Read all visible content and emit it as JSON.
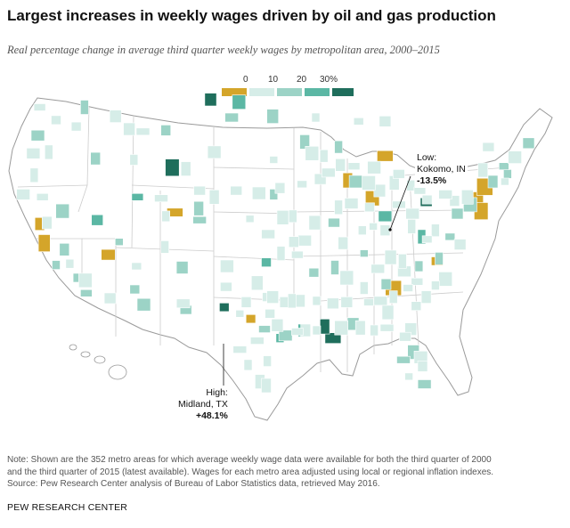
{
  "header": {
    "title": "Largest increases in weekly wages driven by oil and gas production",
    "subtitle": "Real percentage change in average third quarter weekly wages by metropolitan area, 2000–2015"
  },
  "legend": {
    "ticks": [
      "0",
      "10",
      "20",
      "30%"
    ],
    "bins": [
      {
        "label": "<0",
        "color": "#d4a52a"
      },
      {
        "label": "0-10",
        "color": "#d6ede8"
      },
      {
        "label": "10-20",
        "color": "#9cd3c6"
      },
      {
        "label": "20-30",
        "color": "#5bb7a4"
      },
      {
        "label": "30+",
        "color": "#1f6e5c"
      }
    ]
  },
  "colors": {
    "negative": "#d4a52a",
    "low": "#d6ede8",
    "mid": "#9cd3c6",
    "high": "#5bb7a4",
    "highest": "#1f6e5c",
    "borders": "#bbbbbb"
  },
  "callouts": {
    "low": {
      "line1": "Low:",
      "line2": "Kokomo, IN",
      "line3": "-13.5%"
    },
    "high": {
      "line1": "High:",
      "line2": "Midland, TX",
      "line3": "+48.1%"
    }
  },
  "note": {
    "line1": "Note: Shown are the 352 metro areas for which average weekly wage data were available for both the third quarter of 2000",
    "line2": "and the third quarter of 2015 (latest available). Wages for each metro area adjusted using local or regional inflation indexes.",
    "line3": "Source: Pew Research Center analysis of Bureau of Labor Statistics data, retrieved May 2016."
  },
  "brand": "PEW RESEARCH CENTER",
  "map_data": {
    "metro_areas_shown": 352,
    "highlighted": [
      {
        "name": "Kokomo, IN",
        "change_pct": -13.5,
        "bin": "<0"
      },
      {
        "name": "Midland, TX",
        "change_pct": 48.1,
        "bin": "30+"
      }
    ],
    "metros": [
      {
        "bin": "30+",
        "lon": -102.1,
        "lat": 32.0
      },
      {
        "bin": "30+",
        "lon": -103.6,
        "lat": 48.2
      },
      {
        "bin": "30+",
        "lon": -107.8,
        "lat": 42.9
      },
      {
        "bin": "30+",
        "lon": -90.2,
        "lat": 29.6
      },
      {
        "bin": "30+",
        "lon": -91.1,
        "lat": 30.5
      },
      {
        "bin": "30+",
        "lon": -80.0,
        "lat": 40.2
      },
      {
        "bin": "20-30",
        "lon": -116.0,
        "lat": 38.8
      },
      {
        "bin": "20-30",
        "lon": -100.5,
        "lat": 48.0
      },
      {
        "bin": "20-30",
        "lon": -96.0,
        "lat": 29.6
      },
      {
        "bin": "20-30",
        "lon": -93.5,
        "lat": 30.2
      },
      {
        "bin": "20-30",
        "lon": -111.6,
        "lat": 40.6
      },
      {
        "bin": "20-30",
        "lon": -84.5,
        "lat": 39.1
      },
      {
        "bin": "20-30",
        "lon": -80.5,
        "lat": 37.5
      },
      {
        "bin": "20-30",
        "lon": -97.5,
        "lat": 35.5
      },
      {
        "bin": "<0",
        "lon": -85.9,
        "lat": 40.5
      },
      {
        "bin": "<0",
        "lon": -107.5,
        "lat": 39.4
      },
      {
        "bin": "<0",
        "lon": -122.3,
        "lat": 38.5
      },
      {
        "bin": "<0",
        "lon": -121.8,
        "lat": 37.0
      },
      {
        "bin": "<0",
        "lon": -114.8,
        "lat": 36.1
      },
      {
        "bin": "<0",
        "lon": -83.6,
        "lat": 33.5
      },
      {
        "bin": "<0",
        "lon": -99.2,
        "lat": 31.1
      },
      {
        "bin": "<0",
        "lon": -74.4,
        "lat": 40.5
      },
      {
        "bin": "<0",
        "lon": -74.0,
        "lat": 39.5
      },
      {
        "bin": "<0",
        "lon": -84.5,
        "lat": 43.8
      },
      {
        "bin": "<0",
        "lon": -88.6,
        "lat": 41.9
      },
      {
        "bin": "<0",
        "lon": -78.8,
        "lat": 35.6
      },
      {
        "bin": "<0",
        "lon": -77.0,
        "lat": 43.0
      },
      {
        "bin": "<0",
        "lon": -73.6,
        "lat": 41.4
      },
      {
        "bin": "10-20",
        "lon": -118.2,
        "lat": 34.3
      },
      {
        "bin": "10-20",
        "lon": -119.6,
        "lat": 36.5
      },
      {
        "bin": "10-20",
        "lon": -117.2,
        "lat": 33.1
      },
      {
        "bin": "10-20",
        "lon": -122.5,
        "lat": 45.4
      },
      {
        "bin": "10-20",
        "lon": -117.4,
        "lat": 47.6
      },
      {
        "bin": "10-20",
        "lon": -111.9,
        "lat": 33.4
      },
      {
        "bin": "10-20",
        "lon": -106.7,
        "lat": 35.1
      },
      {
        "bin": "10-20",
        "lon": -104.8,
        "lat": 38.8
      },
      {
        "bin": "10-20",
        "lon": -96.7,
        "lat": 40.8
      },
      {
        "bin": "10-20",
        "lon": -93.3,
        "lat": 44.9
      },
      {
        "bin": "10-20",
        "lon": -90.1,
        "lat": 38.6
      },
      {
        "bin": "10-20",
        "lon": -87.7,
        "lat": 41.8
      },
      {
        "bin": "10-20",
        "lon": -86.8,
        "lat": 36.2
      },
      {
        "bin": "10-20",
        "lon": -84.4,
        "lat": 33.8
      },
      {
        "bin": "10-20",
        "lon": -81.4,
        "lat": 28.5
      },
      {
        "bin": "10-20",
        "lon": -80.2,
        "lat": 26.0
      },
      {
        "bin": "10-20",
        "lon": -78.6,
        "lat": 35.8
      },
      {
        "bin": "10-20",
        "lon": -77.4,
        "lat": 37.5
      },
      {
        "bin": "10-20",
        "lon": -76.6,
        "lat": 39.3
      },
      {
        "bin": "10-20",
        "lon": -75.2,
        "lat": 40.0
      },
      {
        "bin": "10-20",
        "lon": -71.1,
        "lat": 42.4
      },
      {
        "bin": "10-20",
        "lon": -72.7,
        "lat": 41.8
      },
      {
        "bin": "10-20",
        "lon": -97.7,
        "lat": 30.3
      },
      {
        "bin": "10-20",
        "lon": -95.4,
        "lat": 29.8
      },
      {
        "bin": "10-20",
        "lon": -90.0,
        "lat": 35.1
      },
      {
        "bin": "10-20",
        "lon": -92.3,
        "lat": 34.7
      },
      {
        "bin": "10-20",
        "lon": -88.0,
        "lat": 30.7
      },
      {
        "bin": "10-20",
        "lon": -82.5,
        "lat": 27.9
      },
      {
        "bin": "10-20",
        "lon": -80.8,
        "lat": 35.2
      },
      {
        "bin": "10-20",
        "lon": -104.9,
        "lat": 39.7
      },
      {
        "bin": "10-20",
        "lon": -106.3,
        "lat": 31.8
      },
      {
        "bin": "10-20",
        "lon": -110.9,
        "lat": 32.2
      },
      {
        "bin": "10-20",
        "lon": -113.6,
        "lat": 37.1
      },
      {
        "bin": "10-20",
        "lon": -108.5,
        "lat": 45.8
      },
      {
        "bin": "10-20",
        "lon": -96.8,
        "lat": 46.9
      },
      {
        "bin": "10-20",
        "lon": -101.3,
        "lat": 46.8
      },
      {
        "bin": "10-20",
        "lon": -89.6,
        "lat": 44.5
      },
      {
        "bin": "10-20",
        "lon": -71.5,
        "lat": 43.0
      },
      {
        "bin": "10-20",
        "lon": -68.8,
        "lat": 44.8
      },
      {
        "bin": "10-20",
        "lon": -119.8,
        "lat": 39.5
      },
      {
        "bin": "10-20",
        "lon": -120.5,
        "lat": 35.3
      },
      {
        "bin": "10-20",
        "lon": -116.2,
        "lat": 43.6
      },
      {
        "bin": "0-10",
        "lon": -122.3,
        "lat": 47.6
      },
      {
        "bin": "0-10",
        "lon": -123.0,
        "lat": 44.0
      },
      {
        "bin": "0-10",
        "lon": -121.3,
        "lat": 44.1
      },
      {
        "bin": "0-10",
        "lon": -120.5,
        "lat": 46.6
      },
      {
        "bin": "0-10",
        "lon": -114.0,
        "lat": 46.9
      },
      {
        "bin": "0-10",
        "lon": -111.0,
        "lat": 45.7
      },
      {
        "bin": "0-10",
        "lon": -112.0,
        "lat": 43.5
      },
      {
        "bin": "0-10",
        "lon": -106.3,
        "lat": 42.8
      },
      {
        "bin": "0-10",
        "lon": -104.8,
        "lat": 41.1
      },
      {
        "bin": "0-10",
        "lon": -103.2,
        "lat": 44.1
      },
      {
        "bin": "0-10",
        "lon": -96.7,
        "lat": 43.5
      },
      {
        "bin": "0-10",
        "lon": -96.0,
        "lat": 41.3
      },
      {
        "bin": "0-10",
        "lon": -95.7,
        "lat": 39.0
      },
      {
        "bin": "0-10",
        "lon": -97.3,
        "lat": 37.7
      },
      {
        "bin": "0-10",
        "lon": -94.6,
        "lat": 39.1
      },
      {
        "bin": "0-10",
        "lon": -93.6,
        "lat": 41.6
      },
      {
        "bin": "0-10",
        "lon": -91.6,
        "lat": 42.0
      },
      {
        "bin": "0-10",
        "lon": -92.5,
        "lat": 44.0
      },
      {
        "bin": "0-10",
        "lon": -92.1,
        "lat": 46.8
      },
      {
        "bin": "0-10",
        "lon": -89.4,
        "lat": 43.1
      },
      {
        "bin": "0-10",
        "lon": -87.9,
        "lat": 43.0
      },
      {
        "bin": "0-10",
        "lon": -88.2,
        "lat": 40.1
      },
      {
        "bin": "0-10",
        "lon": -89.6,
        "lat": 39.8
      },
      {
        "bin": "0-10",
        "lon": -86.2,
        "lat": 39.8
      },
      {
        "bin": "0-10",
        "lon": -85.1,
        "lat": 41.1
      },
      {
        "bin": "0-10",
        "lon": -83.0,
        "lat": 40.0
      },
      {
        "bin": "0-10",
        "lon": -81.7,
        "lat": 41.5
      },
      {
        "bin": "0-10",
        "lon": -83.5,
        "lat": 41.7
      },
      {
        "bin": "0-10",
        "lon": -83.0,
        "lat": 42.4
      },
      {
        "bin": "0-10",
        "lon": -85.7,
        "lat": 42.9
      },
      {
        "bin": "0-10",
        "lon": -85.8,
        "lat": 38.3
      },
      {
        "bin": "0-10",
        "lon": -84.5,
        "lat": 38.0
      },
      {
        "bin": "0-10",
        "lon": -83.9,
        "lat": 35.9
      },
      {
        "bin": "0-10",
        "lon": -85.3,
        "lat": 35.0
      },
      {
        "bin": "0-10",
        "lon": -86.8,
        "lat": 33.5
      },
      {
        "bin": "0-10",
        "lon": -86.3,
        "lat": 32.4
      },
      {
        "bin": "0-10",
        "lon": -90.2,
        "lat": 32.3
      },
      {
        "bin": "0-10",
        "lon": -88.7,
        "lat": 34.3
      },
      {
        "bin": "0-10",
        "lon": -92.0,
        "lat": 32.5
      },
      {
        "bin": "0-10",
        "lon": -93.8,
        "lat": 32.5
      },
      {
        "bin": "0-10",
        "lon": -94.1,
        "lat": 36.1
      },
      {
        "bin": "0-10",
        "lon": -93.3,
        "lat": 37.2
      },
      {
        "bin": "0-10",
        "lon": -95.9,
        "lat": 36.2
      },
      {
        "bin": "0-10",
        "lon": -97.4,
        "lat": 32.8
      },
      {
        "bin": "0-10",
        "lon": -96.8,
        "lat": 32.8
      },
      {
        "bin": "0-10",
        "lon": -98.5,
        "lat": 29.4
      },
      {
        "bin": "0-10",
        "lon": -97.4,
        "lat": 27.8
      },
      {
        "bin": "0-10",
        "lon": -98.2,
        "lat": 26.2
      },
      {
        "bin": "0-10",
        "lon": -101.9,
        "lat": 33.6
      },
      {
        "bin": "0-10",
        "lon": -101.8,
        "lat": 35.2
      },
      {
        "bin": "0-10",
        "lon": -100.4,
        "lat": 31.5
      },
      {
        "bin": "0-10",
        "lon": -99.7,
        "lat": 32.4
      },
      {
        "bin": "0-10",
        "lon": -98.5,
        "lat": 33.9
      },
      {
        "bin": "0-10",
        "lon": -106.6,
        "lat": 32.3
      },
      {
        "bin": "0-10",
        "lon": -108.6,
        "lat": 36.7
      },
      {
        "bin": "0-10",
        "lon": -111.7,
        "lat": 35.2
      },
      {
        "bin": "0-10",
        "lon": -114.6,
        "lat": 32.7
      },
      {
        "bin": "0-10",
        "lon": -117.3,
        "lat": 34.1
      },
      {
        "bin": "0-10",
        "lon": -119.0,
        "lat": 35.4
      },
      {
        "bin": "0-10",
        "lon": -121.5,
        "lat": 38.6
      },
      {
        "bin": "0-10",
        "lon": -122.0,
        "lat": 40.6
      },
      {
        "bin": "0-10",
        "lon": -124.1,
        "lat": 40.8
      },
      {
        "bin": "0-10",
        "lon": -122.9,
        "lat": 42.3
      },
      {
        "bin": "0-10",
        "lon": -118.3,
        "lat": 46.1
      },
      {
        "bin": "0-10",
        "lon": -112.5,
        "lat": 45.9
      },
      {
        "bin": "0-10",
        "lon": -109.0,
        "lat": 40.5
      },
      {
        "bin": "0-10",
        "lon": -108.5,
        "lat": 39.1
      },
      {
        "bin": "0-10",
        "lon": -103.2,
        "lat": 40.6
      },
      {
        "bin": "0-10",
        "lon": -100.8,
        "lat": 41.1
      },
      {
        "bin": "0-10",
        "lon": -98.3,
        "lat": 40.9
      },
      {
        "bin": "0-10",
        "lon": -99.3,
        "lat": 38.9
      },
      {
        "bin": "0-10",
        "lon": -94.5,
        "lat": 37.1
      },
      {
        "bin": "0-10",
        "lon": -92.2,
        "lat": 38.6
      },
      {
        "bin": "0-10",
        "lon": -90.7,
        "lat": 42.5
      },
      {
        "bin": "0-10",
        "lon": -91.2,
        "lat": 43.8
      },
      {
        "bin": "0-10",
        "lon": -87.4,
        "lat": 46.5
      },
      {
        "bin": "0-10",
        "lon": -84.5,
        "lat": 46.5
      },
      {
        "bin": "0-10",
        "lon": -86.3,
        "lat": 41.7
      },
      {
        "bin": "0-10",
        "lon": -87.0,
        "lat": 38.0
      },
      {
        "bin": "0-10",
        "lon": -89.1,
        "lat": 37.0
      },
      {
        "bin": "0-10",
        "lon": -80.7,
        "lat": 41.1
      },
      {
        "bin": "0-10",
        "lon": -81.5,
        "lat": 39.3
      },
      {
        "bin": "0-10",
        "lon": -81.6,
        "lat": 38.3
      },
      {
        "bin": "0-10",
        "lon": -79.9,
        "lat": 40.4
      },
      {
        "bin": "0-10",
        "lon": -78.9,
        "lat": 42.9
      },
      {
        "bin": "0-10",
        "lon": -77.6,
        "lat": 43.2
      },
      {
        "bin": "0-10",
        "lon": -76.1,
        "lat": 43.0
      },
      {
        "bin": "0-10",
        "lon": -73.8,
        "lat": 42.7
      },
      {
        "bin": "0-10",
        "lon": -73.2,
        "lat": 44.5
      },
      {
        "bin": "0-10",
        "lon": -70.3,
        "lat": 43.7
      },
      {
        "bin": "0-10",
        "lon": -71.4,
        "lat": 41.8
      },
      {
        "bin": "0-10",
        "lon": -76.9,
        "lat": 40.3
      },
      {
        "bin": "0-10",
        "lon": -75.5,
        "lat": 40.6
      },
      {
        "bin": "0-10",
        "lon": -77.9,
        "lat": 40.8
      },
      {
        "bin": "0-10",
        "lon": -79.0,
        "lat": 38.0
      },
      {
        "bin": "0-10",
        "lon": -79.9,
        "lat": 37.3
      },
      {
        "bin": "0-10",
        "lon": -76.3,
        "lat": 36.9
      },
      {
        "bin": "0-10",
        "lon": -77.9,
        "lat": 34.2
      },
      {
        "bin": "0-10",
        "lon": -79.0,
        "lat": 33.7
      },
      {
        "bin": "0-10",
        "lon": -80.0,
        "lat": 32.8
      },
      {
        "bin": "0-10",
        "lon": -81.0,
        "lat": 34.0
      },
      {
        "bin": "0-10",
        "lon": -82.4,
        "lat": 34.8
      },
      {
        "bin": "0-10",
        "lon": -82.6,
        "lat": 35.6
      },
      {
        "bin": "0-10",
        "lon": -81.1,
        "lat": 32.1
      },
      {
        "bin": "0-10",
        "lon": -81.7,
        "lat": 30.3
      },
      {
        "bin": "0-10",
        "lon": -84.3,
        "lat": 30.4
      },
      {
        "bin": "0-10",
        "lon": -85.7,
        "lat": 30.2
      },
      {
        "bin": "0-10",
        "lon": -87.2,
        "lat": 30.4
      },
      {
        "bin": "0-10",
        "lon": -82.3,
        "lat": 29.7
      },
      {
        "bin": "0-10",
        "lon": -80.6,
        "lat": 28.1
      },
      {
        "bin": "0-10",
        "lon": -81.9,
        "lat": 26.6
      },
      {
        "bin": "0-10",
        "lon": -80.4,
        "lat": 27.4
      },
      {
        "bin": "0-10",
        "lon": -84.2,
        "lat": 31.6
      },
      {
        "bin": "0-10",
        "lon": -85.0,
        "lat": 32.5
      },
      {
        "bin": "0-10",
        "lon": -83.6,
        "lat": 32.8
      },
      {
        "bin": "0-10",
        "lon": -82.0,
        "lat": 33.5
      },
      {
        "bin": "0-10",
        "lon": -88.7,
        "lat": 32.4
      },
      {
        "bin": "0-10",
        "lon": -89.3,
        "lat": 30.4
      },
      {
        "bin": "0-10",
        "lon": -92.0,
        "lat": 30.2
      },
      {
        "bin": "0-10",
        "lon": -93.2,
        "lat": 30.2
      },
      {
        "bin": "0-10",
        "lon": -94.1,
        "lat": 30.1
      },
      {
        "bin": "0-10",
        "lon": -95.3,
        "lat": 32.4
      },
      {
        "bin": "0-10",
        "lon": -94.7,
        "lat": 32.5
      },
      {
        "bin": "0-10",
        "lon": -97.1,
        "lat": 31.5
      },
      {
        "bin": "0-10",
        "lon": -96.3,
        "lat": 30.6
      },
      {
        "bin": "0-10",
        "lon": -100.4,
        "lat": 28.7
      },
      {
        "bin": "0-10",
        "lon": -99.5,
        "lat": 27.5
      },
      {
        "bin": "0-10",
        "lon": -97.5,
        "lat": 25.9
      }
    ]
  }
}
